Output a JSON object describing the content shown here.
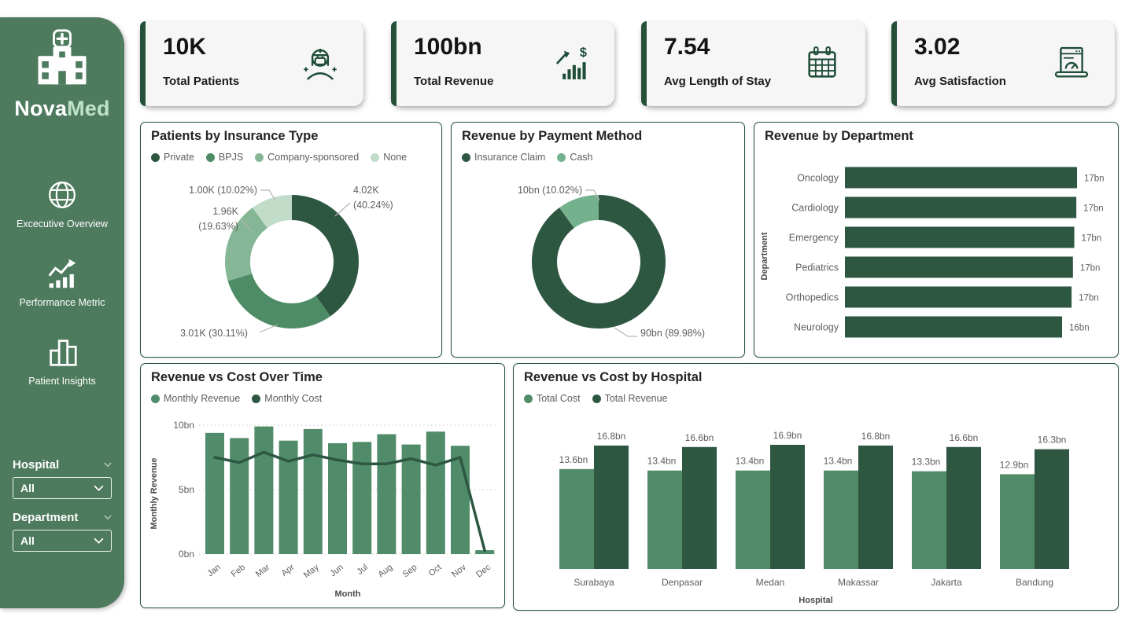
{
  "brand": {
    "name_primary": "Nova",
    "name_secondary": "Med"
  },
  "colors": {
    "sidebar_green": "#4e7b5e",
    "dark_green": "#2d5741",
    "medium_green": "#518c6a",
    "light_green": "#85b797",
    "pale_green": "#c1dcc9",
    "accent_dark": "#265138",
    "card_border": "#205243",
    "label_gray": "#605e5c"
  },
  "sidebar": {
    "nav": [
      {
        "label": "Excecutive Overview",
        "icon": "globe-icon"
      },
      {
        "label": "Performance Metric",
        "icon": "performance-icon"
      },
      {
        "label": "Patient Insights",
        "icon": "insights-icon"
      }
    ],
    "filters": [
      {
        "label": "Hospital",
        "value": "All"
      },
      {
        "label": "Department",
        "value": "All"
      }
    ]
  },
  "kpis": [
    {
      "value": "10K",
      "label": "Total Patients",
      "icon": "nurse-icon"
    },
    {
      "value": "100bn",
      "label": "Total Revenue",
      "icon": "revenue-growth-icon"
    },
    {
      "value": "7.54",
      "label": "Avg Length of Stay",
      "icon": "calendar-icon"
    },
    {
      "value": "3.02",
      "label": "Avg Satisfaction",
      "icon": "satisfaction-gauge-icon"
    }
  ],
  "chart_data": [
    {
      "type": "pie",
      "donut": true,
      "title": "Patients by Insurance Type",
      "legend_position": "top",
      "slices": [
        {
          "label": "Private",
          "value": "4.02K",
          "percent": 40.24,
          "color": "#2d5741",
          "callout": [
            "4.02K",
            "(40.24%)"
          ]
        },
        {
          "label": "BPJS",
          "value": "3.01K",
          "percent": 30.11,
          "color": "#4e8c66",
          "callout": [
            "3.01K (30.11%)"
          ]
        },
        {
          "label": "Company-sponsored",
          "value": "1.96K",
          "percent": 19.63,
          "color": "#85b797",
          "callout": [
            "1.96K",
            "(19.63%)"
          ]
        },
        {
          "label": "None",
          "value": "1.00K",
          "percent": 10.02,
          "color": "#c1dcc9",
          "callout": [
            "1.00K (10.02%)"
          ]
        }
      ]
    },
    {
      "type": "pie",
      "donut": true,
      "title": "Revenue by Payment Method",
      "legend_position": "top",
      "slices": [
        {
          "label": "Insurance Claim",
          "value": "90bn",
          "percent": 89.98,
          "color": "#2d5741",
          "callout": [
            "90bn (89.98%)"
          ]
        },
        {
          "label": "Cash",
          "value": "10bn",
          "percent": 10.02,
          "color": "#74b18d",
          "callout": [
            "10bn (10.02%)"
          ]
        }
      ]
    },
    {
      "type": "bar",
      "orientation": "horizontal",
      "title": "Revenue by Department",
      "categories": [
        "Oncology",
        "Cardiology",
        "Emergency",
        "Pediatrics",
        "Orthopedics",
        "Neurology"
      ],
      "values": [
        17.1,
        17.05,
        16.9,
        16.8,
        16.7,
        16.0
      ],
      "value_labels": [
        "17bn",
        "17bn",
        "17bn",
        "17bn",
        "17bn",
        "16bn"
      ],
      "ylabel": "Department",
      "xlim": [
        0,
        17.5
      ],
      "color": "#2d5741",
      "grid": false
    },
    {
      "type": "column+line",
      "title": "Revenue vs Cost Over Time",
      "categories": [
        "Jan",
        "Feb",
        "Mar",
        "Apr",
        "May",
        "Jun",
        "Jul",
        "Aug",
        "Sep",
        "Oct",
        "Nov",
        "Dec"
      ],
      "series": [
        {
          "name": "Monthly Revenue",
          "mark": "column",
          "color": "#518c6a",
          "values": [
            9.4,
            9.0,
            9.9,
            8.8,
            9.7,
            8.6,
            8.7,
            9.3,
            8.5,
            9.5,
            8.4,
            0.3
          ]
        },
        {
          "name": "Monthly Cost",
          "mark": "line",
          "color": "#2d5741",
          "values": [
            7.5,
            7.1,
            7.9,
            7.2,
            7.7,
            7.3,
            7.0,
            7.0,
            7.4,
            6.9,
            7.5,
            0.25
          ]
        }
      ],
      "xlabel": "Month",
      "ylabel": "Monthly Revenue",
      "ylim": [
        0,
        10
      ],
      "yticks": [
        "0bn",
        "5bn",
        "10bn"
      ],
      "grid": "horizontal dotted",
      "legend_position": "top"
    },
    {
      "type": "bar",
      "grouped": true,
      "title": "Revenue vs Cost by Hospital",
      "categories": [
        "Surabaya",
        "Denpasar",
        "Medan",
        "Makassar",
        "Jakarta",
        "Bandung"
      ],
      "series": [
        {
          "name": "Total Cost",
          "color": "#518c6a",
          "values": [
            13.6,
            13.4,
            13.4,
            13.4,
            13.3,
            12.9
          ],
          "labels": [
            "13.6bn",
            "13.4bn",
            "13.4bn",
            "13.4bn",
            "13.3bn",
            "12.9bn"
          ]
        },
        {
          "name": "Total Revenue",
          "color": "#2d5741",
          "values": [
            16.8,
            16.6,
            16.9,
            16.8,
            16.6,
            16.3
          ],
          "labels": [
            "16.8bn",
            "16.6bn",
            "16.9bn",
            "16.8bn",
            "16.6bn",
            "16.3bn"
          ]
        }
      ],
      "xlabel": "Hospital",
      "ylim": [
        0,
        18
      ],
      "grid": false,
      "legend_position": "top"
    }
  ]
}
